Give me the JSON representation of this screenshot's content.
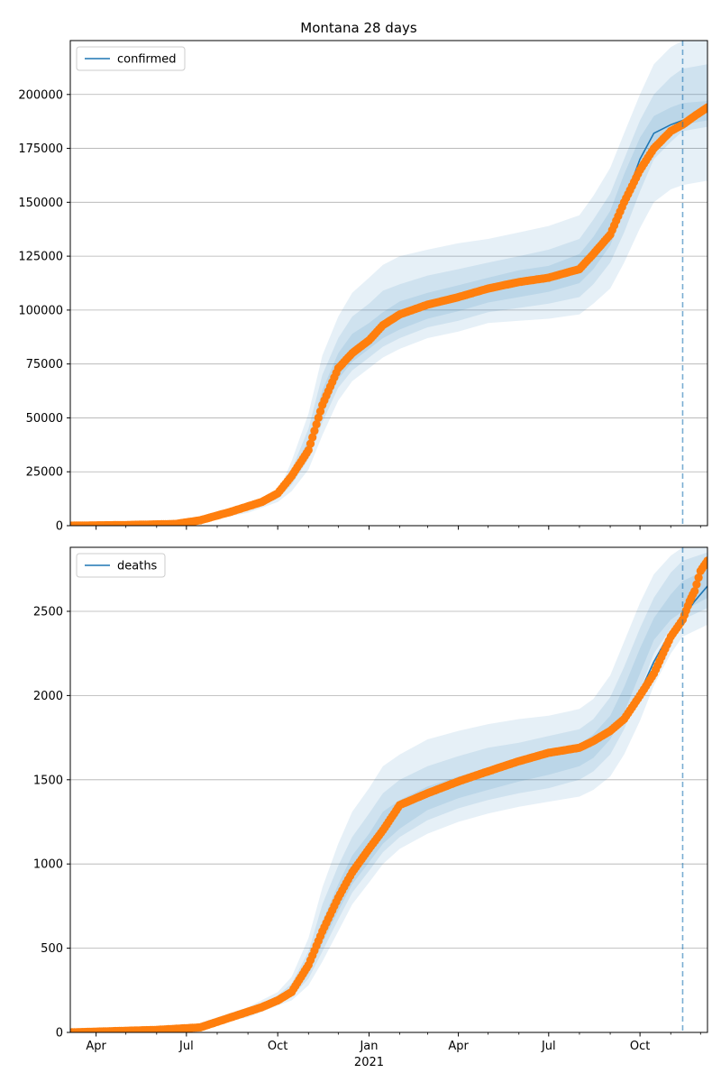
{
  "figure": {
    "title": "Montana 28 days"
  },
  "chart_data": [
    {
      "type": "line",
      "xlim": [
        "2020-03-06",
        "2021-12-08"
      ],
      "ylim": [
        0,
        225000
      ],
      "yticks": [
        0,
        25000,
        50000,
        75000,
        100000,
        125000,
        150000,
        175000,
        200000
      ],
      "ytick_labels": [
        "0",
        "25000",
        "50000",
        "75000",
        "100000",
        "125000",
        "150000",
        "175000",
        "200000"
      ],
      "grid": "y",
      "legend": {
        "position": "top-left",
        "entries": [
          "confirmed"
        ]
      },
      "forecast_start": "2021-11-13",
      "series": [
        {
          "name": "confirmed",
          "style": "line",
          "color": "#1f77b4",
          "x": [
            "2020-03-06",
            "2020-05-01",
            "2020-06-20",
            "2020-07-15",
            "2020-08-15",
            "2020-09-15",
            "2020-10-01",
            "2020-10-15",
            "2020-11-01",
            "2020-11-15",
            "2020-12-01",
            "2020-12-15",
            "2021-01-01",
            "2021-01-15",
            "2021-02-01",
            "2021-03-01",
            "2021-04-01",
            "2021-05-01",
            "2021-06-01",
            "2021-07-01",
            "2021-08-01",
            "2021-08-15",
            "2021-09-01",
            "2021-09-15",
            "2021-10-01",
            "2021-10-15",
            "2021-11-01",
            "2021-11-13",
            "2021-12-08"
          ],
          "y": [
            0,
            300,
            800,
            2500,
            6500,
            11000,
            15000,
            23000,
            36000,
            56000,
            73000,
            80000,
            86000,
            93000,
            98000,
            102500,
            106000,
            110000,
            113000,
            115000,
            120000,
            126000,
            136000,
            150000,
            170000,
            182000,
            186000,
            188000,
            192000
          ]
        },
        {
          "name": "",
          "style": "markers",
          "color": "#ff7f0e",
          "x": [
            "2020-03-06",
            "2020-05-01",
            "2020-06-20",
            "2020-07-15",
            "2020-08-15",
            "2020-09-15",
            "2020-10-01",
            "2020-10-15",
            "2020-11-01",
            "2020-11-15",
            "2020-12-01",
            "2020-12-15",
            "2021-01-01",
            "2021-01-15",
            "2021-02-01",
            "2021-03-01",
            "2021-04-01",
            "2021-05-01",
            "2021-06-01",
            "2021-07-01",
            "2021-08-01",
            "2021-08-15",
            "2021-09-01",
            "2021-09-15",
            "2021-10-01",
            "2021-10-15",
            "2021-11-01",
            "2021-11-13",
            "2021-11-25",
            "2021-12-08"
          ],
          "y": [
            0,
            300,
            800,
            2500,
            6500,
            11000,
            15000,
            23000,
            35000,
            56000,
            73000,
            80000,
            86000,
            93000,
            98000,
            102500,
            106000,
            110000,
            113000,
            115000,
            119000,
            126000,
            135000,
            150000,
            165000,
            175000,
            183000,
            186000,
            190000,
            194000
          ]
        }
      ],
      "bands": {
        "color": "#1f77b4",
        "x": [
          "2020-03-06",
          "2020-07-01",
          "2020-09-01",
          "2020-10-01",
          "2020-10-15",
          "2020-11-01",
          "2020-11-15",
          "2020-12-01",
          "2020-12-15",
          "2021-01-01",
          "2021-01-15",
          "2021-02-01",
          "2021-03-01",
          "2021-04-01",
          "2021-05-01",
          "2021-06-01",
          "2021-07-01",
          "2021-08-01",
          "2021-08-15",
          "2021-09-01",
          "2021-09-15",
          "2021-10-01",
          "2021-10-15",
          "2021-11-01",
          "2021-11-13",
          "2021-12-08"
        ],
        "levels": [
          {
            "lower": [
              0,
              600,
              6000,
              11000,
              16000,
              26000,
              42000,
              58000,
              67000,
              73000,
              78000,
              82000,
              87000,
              90000,
              94000,
              95000,
              96000,
              98000,
              103000,
              110000,
              122000,
              138000,
              150000,
              156000,
              158000,
              160000
            ],
            "upper": [
              0,
              1400,
              9000,
              15000,
              30000,
              52000,
              79000,
              97000,
              108000,
              115000,
              121000,
              125000,
              128000,
              131000,
              133000,
              136000,
              139000,
              144000,
              153000,
              166000,
              182000,
              200000,
              214000,
              222000,
              225000,
              225000
            ]
          },
          {
            "lower": [
              0,
              750,
              7000,
              12500,
              19000,
              31000,
              48000,
              64000,
              72000,
              78000,
              83000,
              87000,
              92000,
              95000,
              99000,
              101000,
              103000,
              106000,
              112000,
              122000,
              136000,
              155000,
              170000,
              178000,
              183000,
              185000
            ],
            "upper": [
              0,
              1200,
              8000,
              14000,
              26000,
              45000,
              70000,
              87000,
              97000,
              103000,
              109000,
              112000,
              116000,
              119000,
              122000,
              125000,
              128000,
              133000,
              142000,
              154000,
              170000,
              188000,
              200000,
              208000,
              212000,
              214000
            ]
          },
          {
            "lower": [
              0,
              850,
              7300,
              13000,
              20500,
              33500,
              51500,
              68000,
              76000,
              82000,
              87000,
              91000,
              96000,
              99500,
              103500,
              106000,
              108500,
              112500,
              119000,
              130000,
              146000,
              164000,
              178000,
              184000,
              186000,
              188000
            ],
            "upper": [
              0,
              1050,
              7700,
              13500,
              24000,
              40000,
              63000,
              80000,
              89000,
              94000,
              99000,
              104000,
              108000,
              111500,
              115000,
              118500,
              120500,
              126000,
              134000,
              146000,
              163000,
              180000,
              190000,
              194000,
              196000,
              197000
            ]
          }
        ]
      }
    },
    {
      "type": "line",
      "xlim": [
        "2020-03-06",
        "2021-12-08"
      ],
      "ylim": [
        0,
        2880
      ],
      "yticks": [
        0,
        500,
        1000,
        1500,
        2000,
        2500
      ],
      "ytick_labels": [
        "0",
        "500",
        "1000",
        "1500",
        "2000",
        "2500"
      ],
      "grid": "y",
      "legend": {
        "position": "top-left",
        "entries": [
          "deaths"
        ]
      },
      "forecast_start": "2021-11-13",
      "xticks": [
        "2020-04-01",
        "2020-07-01",
        "2020-10-01",
        "2021-01-01",
        "2021-04-01",
        "2021-07-01",
        "2021-10-01"
      ],
      "xtick_labels": [
        "Apr",
        "Jul",
        "Oct",
        "Jan",
        "Apr",
        "Jul",
        "Oct"
      ],
      "xtick_sublabel": {
        "under": "Jan",
        "text": "2021"
      },
      "series": [
        {
          "name": "deaths",
          "style": "line",
          "color": "#1f77b4",
          "x": [
            "2020-03-06",
            "2020-06-01",
            "2020-07-15",
            "2020-08-15",
            "2020-09-15",
            "2020-10-01",
            "2020-10-15",
            "2020-11-01",
            "2020-11-15",
            "2020-12-01",
            "2020-12-15",
            "2021-01-01",
            "2021-01-15",
            "2021-02-01",
            "2021-03-01",
            "2021-04-01",
            "2021-05-01",
            "2021-06-01",
            "2021-07-01",
            "2021-08-01",
            "2021-08-15",
            "2021-09-01",
            "2021-09-15",
            "2021-10-01",
            "2021-10-15",
            "2021-11-01",
            "2021-11-13",
            "2021-11-25",
            "2021-12-08"
          ],
          "y": [
            0,
            15,
            30,
            90,
            150,
            190,
            240,
            400,
            600,
            800,
            950,
            1090,
            1220,
            1350,
            1420,
            1490,
            1550,
            1610,
            1660,
            1700,
            1740,
            1800,
            1880,
            2020,
            2200,
            2380,
            2460,
            2560,
            2650
          ]
        },
        {
          "name": "",
          "style": "markers",
          "color": "#ff7f0e",
          "x": [
            "2020-03-06",
            "2020-06-01",
            "2020-07-15",
            "2020-08-15",
            "2020-09-15",
            "2020-10-01",
            "2020-10-15",
            "2020-11-01",
            "2020-11-15",
            "2020-12-01",
            "2020-12-15",
            "2021-01-01",
            "2021-01-15",
            "2021-02-01",
            "2021-03-01",
            "2021-04-01",
            "2021-05-01",
            "2021-06-01",
            "2021-07-01",
            "2021-08-01",
            "2021-08-15",
            "2021-09-01",
            "2021-09-15",
            "2021-10-01",
            "2021-10-15",
            "2021-11-01",
            "2021-11-13",
            "2021-11-20",
            "2021-11-25",
            "2021-12-01",
            "2021-12-08"
          ],
          "y": [
            0,
            15,
            30,
            90,
            150,
            190,
            240,
            400,
            600,
            800,
            950,
            1090,
            1200,
            1350,
            1420,
            1490,
            1550,
            1610,
            1660,
            1690,
            1730,
            1790,
            1860,
            2000,
            2130,
            2350,
            2450,
            2560,
            2620,
            2740,
            2800
          ]
        }
      ],
      "bands": {
        "color": "#1f77b4",
        "x": [
          "2020-03-06",
          "2020-07-01",
          "2020-09-01",
          "2020-10-01",
          "2020-10-15",
          "2020-11-01",
          "2020-11-15",
          "2020-12-01",
          "2020-12-15",
          "2021-01-01",
          "2021-01-15",
          "2021-02-01",
          "2021-03-01",
          "2021-04-01",
          "2021-05-01",
          "2021-06-01",
          "2021-07-01",
          "2021-08-01",
          "2021-08-15",
          "2021-09-01",
          "2021-09-15",
          "2021-10-01",
          "2021-10-15",
          "2021-11-01",
          "2021-11-13",
          "2021-12-08"
        ],
        "levels": [
          {
            "lower": [
              0,
              14,
              90,
              160,
              190,
              280,
              420,
              600,
              760,
              890,
              1000,
              1090,
              1180,
              1250,
              1300,
              1340,
              1370,
              1400,
              1440,
              1520,
              1650,
              1850,
              2060,
              2250,
              2350,
              2420
            ],
            "upper": [
              0,
              30,
              150,
              240,
              330,
              560,
              860,
              1120,
              1310,
              1450,
              1580,
              1650,
              1740,
              1790,
              1830,
              1860,
              1880,
              1920,
              1980,
              2120,
              2320,
              2550,
              2720,
              2830,
              2880,
              2880
            ]
          },
          {
            "lower": [
              0,
              18,
              105,
              175,
              210,
              320,
              480,
              670,
              830,
              960,
              1070,
              1160,
              1260,
              1330,
              1380,
              1420,
              1450,
              1500,
              1550,
              1650,
              1800,
              2030,
              2250,
              2400,
              2450,
              2520
            ],
            "upper": [
              0,
              26,
              135,
              220,
              290,
              480,
              760,
              990,
              1160,
              1300,
              1420,
              1500,
              1580,
              1640,
              1690,
              1720,
              1760,
              1800,
              1860,
              1990,
              2170,
              2400,
              2580,
              2730,
              2800,
              2850
            ]
          },
          {
            "lower": [
              0,
              21,
              115,
              185,
              225,
              350,
              530,
              720,
              880,
              1010,
              1120,
              1210,
              1320,
              1390,
              1440,
              1490,
              1530,
              1580,
              1630,
              1740,
              1900,
              2130,
              2330,
              2450,
              2500,
              2580
            ],
            "upper": [
              0,
              24,
              125,
              205,
              265,
              430,
              660,
              880,
              1050,
              1180,
              1310,
              1380,
              1460,
              1520,
              1570,
              1610,
              1660,
              1710,
              1770,
              1880,
              2050,
              2280,
              2460,
              2600,
              2680,
              2750
            ]
          }
        ]
      }
    }
  ]
}
